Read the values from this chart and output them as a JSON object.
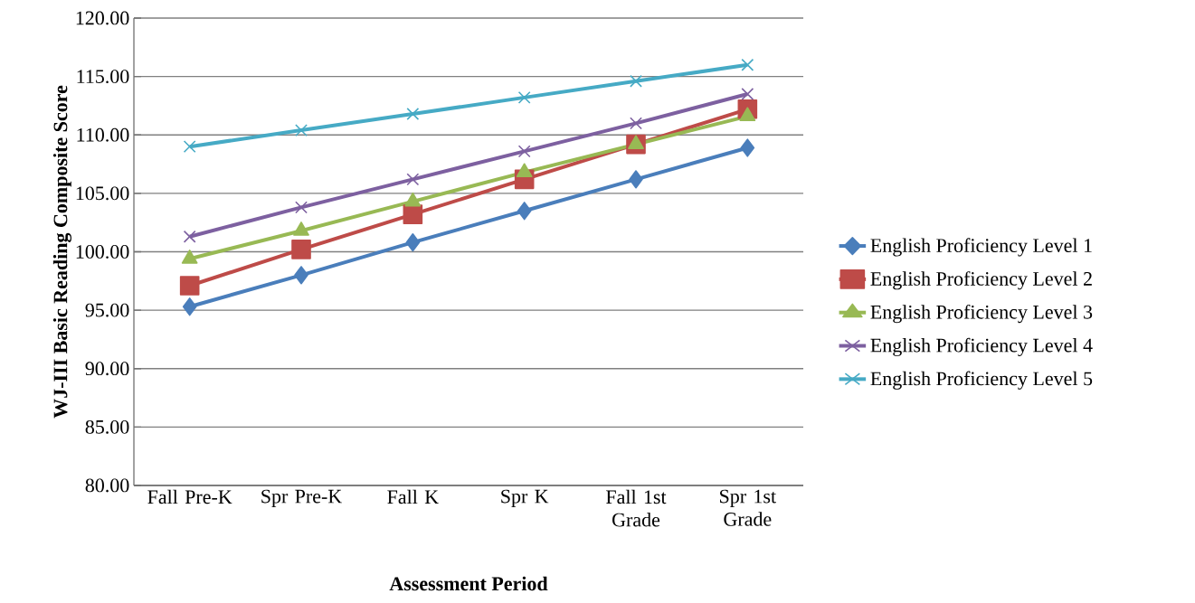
{
  "chart_data": {
    "type": "line",
    "xlabel": "Assessment Period",
    "ylabel": "WJ-III Basic Reading Composite Score",
    "categories": [
      "Fall Pre-K",
      "Spr Pre-K",
      "Fall K",
      "Spr K",
      "Fall 1st Grade",
      "Spr 1st Grade"
    ],
    "ylim": [
      80,
      120
    ],
    "yticks": [
      {
        "value": 80,
        "label": "80.00"
      },
      {
        "value": 85,
        "label": "85.00"
      },
      {
        "value": 90,
        "label": "90.00"
      },
      {
        "value": 95,
        "label": "95.00"
      },
      {
        "value": 100,
        "label": "100.00"
      },
      {
        "value": 105,
        "label": "105.00"
      },
      {
        "value": 110,
        "label": "110.00"
      },
      {
        "value": 115,
        "label": "115.00"
      },
      {
        "value": 120,
        "label": "120.00"
      }
    ],
    "grid": "y",
    "legend": "right",
    "line_style": "solid",
    "series": [
      {
        "name": "English Proficiency Level 1",
        "color": "#4a7ebb",
        "marker": "diamond",
        "values": [
          95.3,
          98.0,
          100.8,
          103.5,
          106.2,
          108.9
        ]
      },
      {
        "name": "English Proficiency Level 2",
        "color": "#be4b48",
        "marker": "square",
        "values": [
          97.1,
          100.2,
          103.2,
          106.2,
          109.2,
          112.2
        ]
      },
      {
        "name": "English Proficiency Level 3",
        "color": "#98b954",
        "marker": "triangle",
        "values": [
          99.4,
          101.8,
          104.3,
          106.8,
          109.2,
          111.6
        ]
      },
      {
        "name": "English Proficiency Level 4",
        "color": "#7d60a0",
        "marker": "cross",
        "values": [
          101.3,
          103.8,
          106.2,
          108.6,
          111.0,
          113.5
        ]
      },
      {
        "name": "English Proficiency Level 5",
        "color": "#46aac5",
        "marker": "cross",
        "values": [
          109.0,
          110.4,
          111.8,
          113.2,
          114.6,
          116.0
        ]
      }
    ]
  }
}
